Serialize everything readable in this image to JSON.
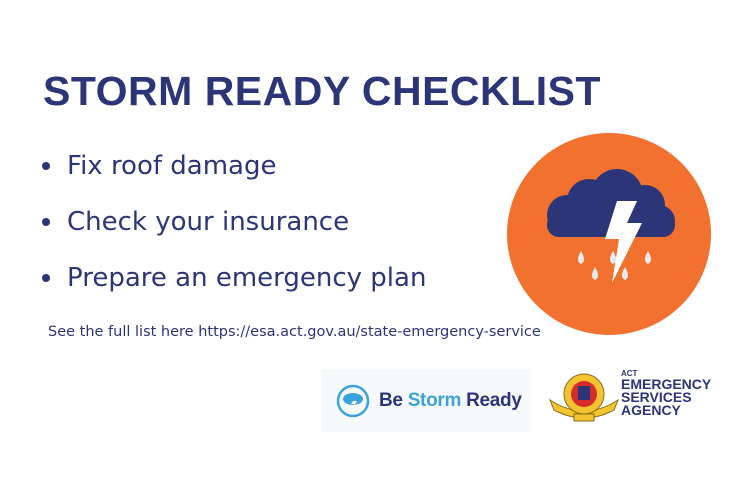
{
  "title": "STORM READY CHECKLIST",
  "checklist": [
    "Fix roof damage",
    "Check your insurance",
    "Prepare an emergency plan"
  ],
  "link_text": "See the full list here https://esa.act.gov.au/state-emergency-service",
  "icon": {
    "name": "storm-cloud-lightning-rain-icon",
    "circle_color": "#f2712f",
    "cloud_color": "#2b3577"
  },
  "logos": {
    "be_storm_ready": {
      "be": "Be",
      "storm": "Storm",
      "ready": "Ready"
    },
    "esa": {
      "act": "ACT",
      "line1": "EMERGENCY",
      "line2": "SERVICES",
      "line3": "AGENCY"
    }
  },
  "colors": {
    "primary": "#2b3577",
    "accent": "#f2712f",
    "light_blue": "#3aa3dd"
  }
}
